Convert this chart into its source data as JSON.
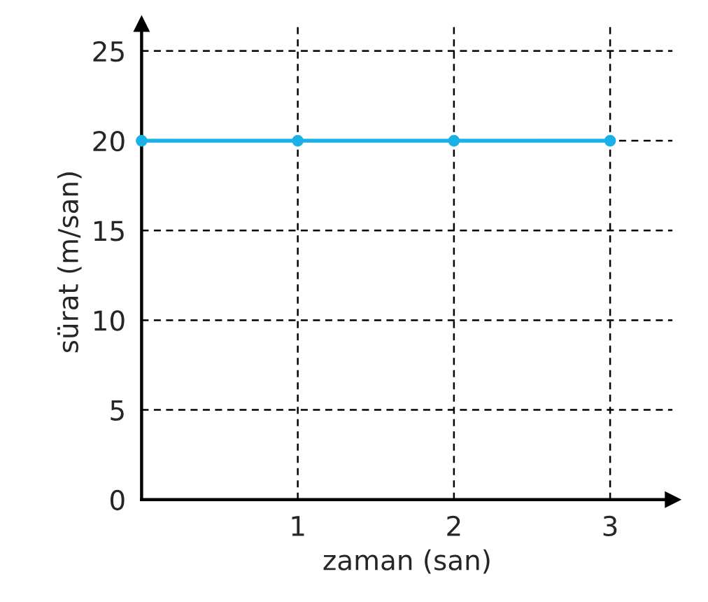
{
  "chart_data": {
    "type": "line",
    "xlabel": "zaman (san)",
    "ylabel": "sürat (m/san)",
    "x": [
      0,
      1,
      2,
      3
    ],
    "series": [
      {
        "color": "#1ab0e8",
        "values": [
          20,
          20,
          20,
          20
        ]
      }
    ],
    "xlim": [
      0,
      3.4
    ],
    "ylim": [
      0,
      26.5
    ],
    "xticks": [
      1,
      2,
      3
    ],
    "yticks": [
      0,
      5,
      10,
      15,
      20,
      25
    ],
    "grid": true,
    "marker": "circle",
    "line_style": "solid"
  }
}
